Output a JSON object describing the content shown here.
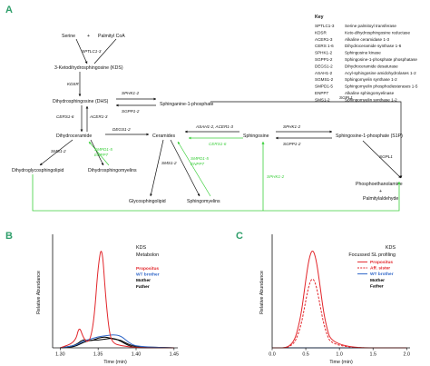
{
  "panels": {
    "a": "A",
    "b": "B",
    "c": "C"
  },
  "pathway": {
    "metabolites": {
      "serine": "Serine",
      "plus1": "+",
      "palmitoyl": "Palmityl CoA",
      "kds": "3-Ketodihydrosphingosine (KDS)",
      "dhs": "Dihydrosphingosine (DHS)",
      "sa1p": "Sphinganine-1-phosphate",
      "dhcer": "Dihydroceramide",
      "cer": "Ceramides",
      "sph": "Sphingosine",
      "s1p": "Sphingosine-1-phosphate (S1P)",
      "dhglyco": "Dihydroglycosphingolipid",
      "dhsm": "Dihydrosphingomyelins",
      "glyco": "Glycosphingolipid",
      "sm": "Sphingomyelins",
      "pe": "Phosphoethanolamine",
      "plus2": "+",
      "palald": "Palmitylaldehyde"
    },
    "enzymes": {
      "sptlc": "SPTLC1-3",
      "kdsr": "KDSR",
      "sphk_a": "SPHK1-2",
      "sgpp_a": "SGPP1-2",
      "sgpl_a": "SGPL1",
      "cers_a": "CERS1-6",
      "acer_a": "ACER1-3",
      "asah": "ASAH1-2, ACER1-3",
      "cers_b": "CERS1-6",
      "sphk_b": "SPHK1-2",
      "sgpp_b": "SGPP1-2",
      "sgpl_b": "SGPL1",
      "degs": "DEGS1-2",
      "sms_a": "SMS1-2",
      "smpd_a1": "SMPD1-5",
      "smpd_a2": "ENPP7",
      "sms_b": "SMS1-2",
      "smpd_b1": "SMPD1-5",
      "smpd_b2": "ENPP7",
      "sphk_c": "SPHK1-2"
    }
  },
  "key": {
    "title": "Key",
    "items": [
      {
        "abbr": "SPTLC1-3",
        "full": "Serine palmitoyl transferase"
      },
      {
        "abbr": "KDSR",
        "full": "Keto-dihydrosphingosine reductase"
      },
      {
        "abbr": "ACER1-3",
        "full": "Alkaline ceramidase 1-3"
      },
      {
        "abbr": "CERS 1-6",
        "full": "Dihydroceramide synthase 1-6"
      },
      {
        "abbr": "SPHK1-2",
        "full": "Sphingosine kinase"
      },
      {
        "abbr": "SGPP1-2",
        "full": "Sphingosine-1-phosphate phosphatase"
      },
      {
        "abbr": "DEGS1-2",
        "full": "Dihydroceramide desaturase"
      },
      {
        "abbr": "ASAH1-2",
        "full": "Acyl-sphingosine amidohydrolases 1-2"
      },
      {
        "abbr": "SGMS1-2",
        "full": "Sphingomyelin synthase 1-2"
      },
      {
        "abbr": "SMPD1-5",
        "full": "Sphingomyelin phosphodiesterases 1-5"
      },
      {
        "abbr": "ENPP7",
        "full": "Alkaline sphingomyelinase"
      },
      {
        "abbr": "SMS1-2",
        "full": "Sphingomyelin synthase 1-2"
      }
    ]
  },
  "chart_b": {
    "annotation_1": "KDS",
    "annotation_2": "Metabolon",
    "ylabel": "Relative Abundance",
    "xlabel": "Time (min)",
    "xticks": [
      "1.30",
      "1.35",
      "1.40",
      "1.45"
    ],
    "legend": [
      {
        "label": "Propositus",
        "color": "#e2262b"
      },
      {
        "label": "WT brother",
        "color": "#2f66c8"
      },
      {
        "label": "Mother",
        "color": "#000000"
      },
      {
        "label": "Father",
        "color": "#000000"
      }
    ]
  },
  "chart_c": {
    "annotation_1": "KDS",
    "annotation_2": "Focussed SL profiling",
    "ylabel": "Relative Abundance",
    "xlabel": "Time (min)",
    "xticks": [
      "0.0",
      "0.5",
      "1.0",
      "1.5",
      "2.0"
    ],
    "legend": [
      {
        "label": "Propositus",
        "color": "#e2262b"
      },
      {
        "label": "Aff. sister",
        "color": "#e2262b"
      },
      {
        "label": "WT brother",
        "color": "#2f66c8"
      },
      {
        "label": "Mother",
        "color": "#000000"
      },
      {
        "label": "Father",
        "color": "#000000"
      }
    ]
  },
  "chart_data": [
    {
      "type": "line",
      "panel": "B",
      "xlim": [
        1.29,
        1.455
      ],
      "ylim": [
        0,
        1.0
      ],
      "series": [
        {
          "name": "Propositus",
          "color": "#e2262b",
          "x": [
            1.3,
            1.32,
            1.325,
            1.33,
            1.335,
            1.34,
            1.345,
            1.35,
            1.355,
            1.36,
            1.365,
            1.37,
            1.38,
            1.4,
            1.45
          ],
          "y": [
            0.0,
            0.05,
            0.2,
            0.1,
            0.05,
            0.08,
            0.28,
            0.75,
            0.95,
            0.45,
            0.12,
            0.04,
            0.02,
            0.0,
            0.0
          ]
        },
        {
          "name": "WT brother",
          "color": "#2f66c8",
          "x": [
            1.3,
            1.32,
            1.33,
            1.34,
            1.35,
            1.36,
            1.37,
            1.38,
            1.39,
            1.4,
            1.45
          ],
          "y": [
            0.0,
            0.02,
            0.06,
            0.08,
            0.1,
            0.11,
            0.12,
            0.11,
            0.05,
            0.01,
            0.0
          ]
        },
        {
          "name": "Mother",
          "color": "#000000",
          "x": [
            1.3,
            1.32,
            1.33,
            1.34,
            1.35,
            1.36,
            1.37,
            1.38,
            1.39,
            1.4,
            1.45
          ],
          "y": [
            0.0,
            0.02,
            0.08,
            0.06,
            0.09,
            0.1,
            0.08,
            0.07,
            0.03,
            0.01,
            0.0
          ]
        },
        {
          "name": "Father",
          "color": "#000000",
          "x": [
            1.3,
            1.32,
            1.33,
            1.34,
            1.35,
            1.36,
            1.37,
            1.38,
            1.39,
            1.4,
            1.45
          ],
          "y": [
            0.0,
            0.01,
            0.05,
            0.07,
            0.07,
            0.08,
            0.09,
            0.06,
            0.02,
            0.0,
            0.0
          ]
        }
      ]
    },
    {
      "type": "line",
      "panel": "C",
      "xlim": [
        0.0,
        2.05
      ],
      "ylim": [
        0,
        1.0
      ],
      "series": [
        {
          "name": "Propositus",
          "color": "#e2262b",
          "x": [
            0.0,
            0.3,
            0.42,
            0.5,
            0.55,
            0.6,
            0.65,
            0.7,
            0.78,
            0.9,
            2.0
          ],
          "y": [
            0.0,
            0.0,
            0.25,
            0.62,
            0.82,
            0.9,
            0.82,
            0.62,
            0.25,
            0.0,
            0.0
          ]
        },
        {
          "name": "Aff. sister",
          "color": "#e2262b",
          "x": [
            0.0,
            0.3,
            0.42,
            0.5,
            0.55,
            0.6,
            0.65,
            0.7,
            0.78,
            0.9,
            2.0
          ],
          "y": [
            0.0,
            0.0,
            0.17,
            0.43,
            0.58,
            0.64,
            0.58,
            0.43,
            0.17,
            0.0,
            0.0
          ]
        },
        {
          "name": "WT brother",
          "color": "#2f66c8",
          "x": [
            0.0,
            2.0
          ],
          "y": [
            0.0,
            0.0
          ]
        },
        {
          "name": "Mother",
          "color": "#000000",
          "x": [
            0.0,
            2.0
          ],
          "y": [
            0.0,
            0.0
          ]
        },
        {
          "name": "Father",
          "color": "#000000",
          "x": [
            0.0,
            2.0
          ],
          "y": [
            0.0,
            0.0
          ]
        }
      ]
    }
  ]
}
